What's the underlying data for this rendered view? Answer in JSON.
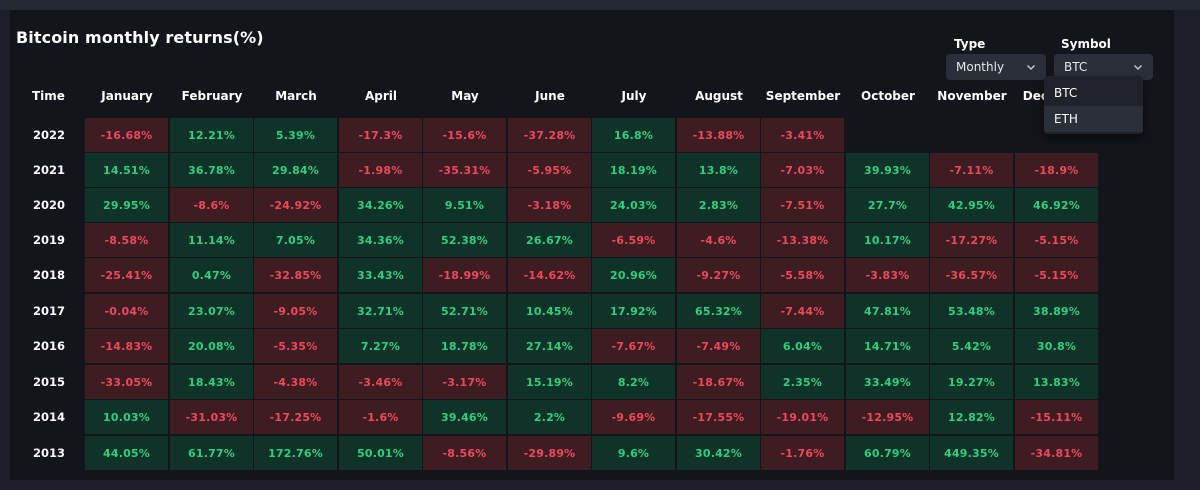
{
  "title": "Bitcoin monthly returns(%)",
  "controls": {
    "type_label": "Type",
    "type_value": "Monthly",
    "symbol_label": "Symbol",
    "symbol_value": "BTC",
    "symbol_options": [
      "BTC",
      "ETH"
    ]
  },
  "colors": {
    "positive_bg": "#0f3328",
    "positive_text": "#2ad07f",
    "negative_bg": "#3e1d22",
    "negative_text": "#f0475d"
  },
  "table": {
    "time_header": "Time",
    "months": [
      "January",
      "February",
      "March",
      "April",
      "May",
      "June",
      "July",
      "August",
      "September",
      "October",
      "November",
      "December"
    ],
    "rows": [
      {
        "year": "2022",
        "values": [
          "-16.68%",
          "12.21%",
          "5.39%",
          "-17.3%",
          "-15.6%",
          "-37.28%",
          "16.8%",
          "-13.88%",
          "-3.41%",
          "",
          "",
          ""
        ]
      },
      {
        "year": "2021",
        "values": [
          "14.51%",
          "36.78%",
          "29.84%",
          "-1.98%",
          "-35.31%",
          "-5.95%",
          "18.19%",
          "13.8%",
          "-7.03%",
          "39.93%",
          "-7.11%",
          "-18.9%"
        ]
      },
      {
        "year": "2020",
        "values": [
          "29.95%",
          "-8.6%",
          "-24.92%",
          "34.26%",
          "9.51%",
          "-3.18%",
          "24.03%",
          "2.83%",
          "-7.51%",
          "27.7%",
          "42.95%",
          "46.92%"
        ]
      },
      {
        "year": "2019",
        "values": [
          "-8.58%",
          "11.14%",
          "7.05%",
          "34.36%",
          "52.38%",
          "26.67%",
          "-6.59%",
          "-4.6%",
          "-13.38%",
          "10.17%",
          "-17.27%",
          "-5.15%"
        ]
      },
      {
        "year": "2018",
        "values": [
          "-25.41%",
          "0.47%",
          "-32.85%",
          "33.43%",
          "-18.99%",
          "-14.62%",
          "20.96%",
          "-9.27%",
          "-5.58%",
          "-3.83%",
          "-36.57%",
          "-5.15%"
        ]
      },
      {
        "year": "2017",
        "values": [
          "-0.04%",
          "23.07%",
          "-9.05%",
          "32.71%",
          "52.71%",
          "10.45%",
          "17.92%",
          "65.32%",
          "-7.44%",
          "47.81%",
          "53.48%",
          "38.89%"
        ]
      },
      {
        "year": "2016",
        "values": [
          "-14.83%",
          "20.08%",
          "-5.35%",
          "7.27%",
          "18.78%",
          "27.14%",
          "-7.67%",
          "-7.49%",
          "6.04%",
          "14.71%",
          "5.42%",
          "30.8%"
        ]
      },
      {
        "year": "2015",
        "values": [
          "-33.05%",
          "18.43%",
          "-4.38%",
          "-3.46%",
          "-3.17%",
          "15.19%",
          "8.2%",
          "-18.67%",
          "2.35%",
          "33.49%",
          "19.27%",
          "13.83%"
        ]
      },
      {
        "year": "2014",
        "values": [
          "10.03%",
          "-31.03%",
          "-17.25%",
          "-1.6%",
          "39.46%",
          "2.2%",
          "-9.69%",
          "-17.55%",
          "-19.01%",
          "-12.95%",
          "12.82%",
          "-15.11%"
        ]
      },
      {
        "year": "2013",
        "values": [
          "44.05%",
          "61.77%",
          "172.76%",
          "50.01%",
          "-8.56%",
          "-29.89%",
          "9.6%",
          "30.42%",
          "-1.76%",
          "60.79%",
          "449.35%",
          "-34.81%"
        ]
      }
    ]
  }
}
